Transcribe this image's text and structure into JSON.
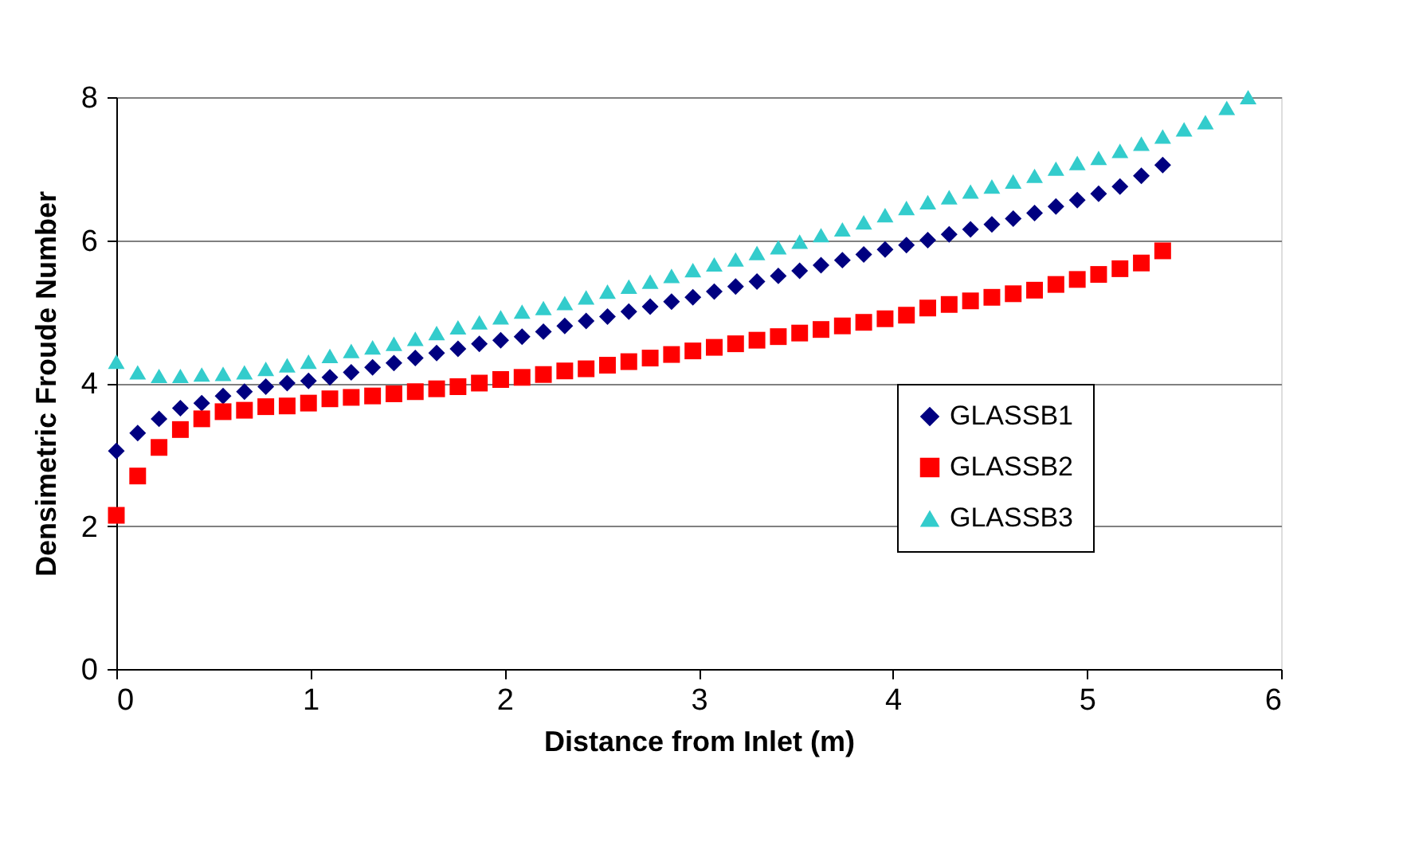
{
  "chart_data": {
    "type": "scatter",
    "xlabel": "Distance from Inlet (m)",
    "ylabel": "Densimetric Froude Number",
    "xlim": [
      0,
      6
    ],
    "xticks": [
      0,
      1,
      2,
      3,
      4,
      5,
      6
    ],
    "ylim": [
      0,
      8
    ],
    "yticks": [
      0,
      2,
      4,
      6,
      8
    ],
    "grid": "y",
    "legend": "bottom right",
    "series": [
      {
        "name": "GLASSB1",
        "color": "#000080",
        "marker": "diamond",
        "x": [
          0,
          0.11,
          0.22,
          0.33,
          0.44,
          0.55,
          0.66,
          0.77,
          0.88,
          0.99,
          1.1,
          1.21,
          1.32,
          1.43,
          1.54,
          1.65,
          1.76,
          1.87,
          1.98,
          2.09,
          2.2,
          2.31,
          2.42,
          2.53,
          2.64,
          2.75,
          2.86,
          2.97,
          3.08,
          3.19,
          3.3,
          3.41,
          3.52,
          3.63,
          3.74,
          3.85,
          3.96,
          4.07,
          4.18,
          4.29,
          4.4,
          4.51,
          4.62,
          4.73,
          4.84,
          4.95,
          5.06,
          5.17,
          5.28,
          5.39
        ],
        "values": [
          3.05,
          3.3,
          3.5,
          3.65,
          3.72,
          3.82,
          3.88,
          3.95,
          4.0,
          4.03,
          4.08,
          4.15,
          4.22,
          4.28,
          4.35,
          4.42,
          4.48,
          4.55,
          4.6,
          4.65,
          4.72,
          4.8,
          4.87,
          4.93,
          5.0,
          5.07,
          5.14,
          5.2,
          5.28,
          5.35,
          5.42,
          5.5,
          5.57,
          5.65,
          5.72,
          5.8,
          5.87,
          5.93,
          6.0,
          6.08,
          6.15,
          6.22,
          6.3,
          6.38,
          6.47,
          6.56,
          6.65,
          6.75,
          6.9,
          7.05
        ]
      },
      {
        "name": "GLASSB2",
        "color": "#ff0000",
        "marker": "square",
        "x": [
          0,
          0.11,
          0.22,
          0.33,
          0.44,
          0.55,
          0.66,
          0.77,
          0.88,
          0.99,
          1.1,
          1.21,
          1.32,
          1.43,
          1.54,
          1.65,
          1.76,
          1.87,
          1.98,
          2.09,
          2.2,
          2.31,
          2.42,
          2.53,
          2.64,
          2.75,
          2.86,
          2.97,
          3.08,
          3.19,
          3.3,
          3.41,
          3.52,
          3.63,
          3.74,
          3.85,
          3.96,
          4.07,
          4.18,
          4.29,
          4.4,
          4.51,
          4.62,
          4.73,
          4.84,
          4.95,
          5.06,
          5.17,
          5.28,
          5.39
        ],
        "values": [
          2.15,
          2.7,
          3.1,
          3.35,
          3.5,
          3.6,
          3.62,
          3.67,
          3.68,
          3.72,
          3.78,
          3.8,
          3.82,
          3.85,
          3.88,
          3.92,
          3.95,
          4.0,
          4.05,
          4.08,
          4.12,
          4.17,
          4.2,
          4.25,
          4.3,
          4.35,
          4.4,
          4.45,
          4.5,
          4.55,
          4.6,
          4.65,
          4.7,
          4.75,
          4.8,
          4.85,
          4.9,
          4.95,
          5.05,
          5.1,
          5.15,
          5.2,
          5.25,
          5.3,
          5.38,
          5.45,
          5.52,
          5.6,
          5.68,
          5.85
        ]
      },
      {
        "name": "GLASSB3",
        "color": "#33cccc",
        "marker": "triangle",
        "x": [
          0,
          0.11,
          0.22,
          0.33,
          0.44,
          0.55,
          0.66,
          0.77,
          0.88,
          0.99,
          1.1,
          1.21,
          1.32,
          1.43,
          1.54,
          1.65,
          1.76,
          1.87,
          1.98,
          2.09,
          2.2,
          2.31,
          2.42,
          2.53,
          2.64,
          2.75,
          2.86,
          2.97,
          3.08,
          3.19,
          3.3,
          3.41,
          3.52,
          3.63,
          3.74,
          3.85,
          3.96,
          4.07,
          4.18,
          4.29,
          4.4,
          4.51,
          4.62,
          4.73,
          4.84,
          4.95,
          5.06,
          5.17,
          5.28,
          5.39,
          5.5,
          5.61,
          5.72,
          5.83
        ],
        "values": [
          4.3,
          4.15,
          4.1,
          4.1,
          4.12,
          4.13,
          4.15,
          4.2,
          4.25,
          4.3,
          4.38,
          4.45,
          4.5,
          4.55,
          4.62,
          4.7,
          4.78,
          4.85,
          4.92,
          5.0,
          5.05,
          5.12,
          5.2,
          5.28,
          5.35,
          5.42,
          5.5,
          5.58,
          5.66,
          5.73,
          5.82,
          5.9,
          5.98,
          6.07,
          6.15,
          6.25,
          6.35,
          6.45,
          6.53,
          6.6,
          6.68,
          6.75,
          6.82,
          6.9,
          7.0,
          7.08,
          7.15,
          7.25,
          7.35,
          7.45,
          7.55,
          7.65,
          7.85,
          8.0
        ]
      }
    ]
  }
}
